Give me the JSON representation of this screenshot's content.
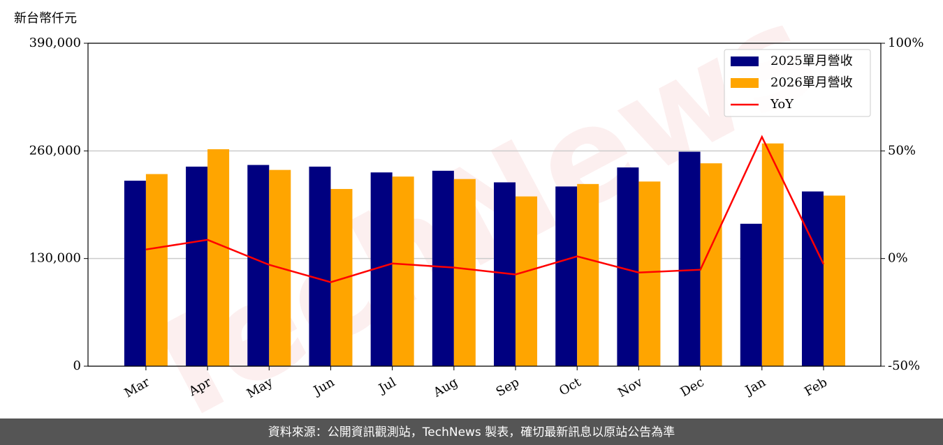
{
  "chart_data": {
    "type": "bar",
    "unit_label": "新台幣仟元",
    "watermark": "TechNews",
    "footer": "資料來源：公開資訊觀測站，TechNews 製表，確切最新訊息以原站公告為準",
    "categories": [
      "Mar",
      "Apr",
      "May",
      "Jun",
      "Jul",
      "Aug",
      "Sep",
      "Oct",
      "Nov",
      "Dec",
      "Jan",
      "Feb"
    ],
    "series": [
      {
        "name": "2025單月營收",
        "type": "bar",
        "color": "#000080",
        "values": [
          224000,
          241000,
          243000,
          241000,
          234000,
          236000,
          222000,
          217000,
          240000,
          259000,
          172000,
          211000
        ]
      },
      {
        "name": "2026單月營收",
        "type": "bar",
        "color": "#ffa500",
        "values": [
          232000,
          262000,
          237000,
          214000,
          229000,
          226000,
          205000,
          220000,
          223000,
          245000,
          269000,
          206000
        ]
      },
      {
        "name": "YoY",
        "type": "line",
        "axis": "y2",
        "color": "#ff0000",
        "values": [
          4.2,
          8.7,
          -2.9,
          -11,
          -2.3,
          -4.2,
          -7.4,
          1.0,
          -6.5,
          -5.2,
          56.5,
          -2.6
        ]
      }
    ],
    "ylim": [
      0,
      390000
    ],
    "yticks": [
      0,
      {
        "value": 130000,
        "label": "130,000"
      },
      {
        "value": 260000,
        "label": "260,000"
      },
      {
        "value": 390000,
        "label": "390,000"
      }
    ],
    "y2lim": [
      -50,
      100
    ],
    "y2ticks": [
      {
        "value": -50,
        "label": "-50%"
      },
      {
        "value": 0,
        "label": "0%"
      },
      {
        "value": 50,
        "label": "50%"
      },
      {
        "value": 100,
        "label": "100%"
      }
    ],
    "grid": true,
    "legend": "upper right"
  }
}
